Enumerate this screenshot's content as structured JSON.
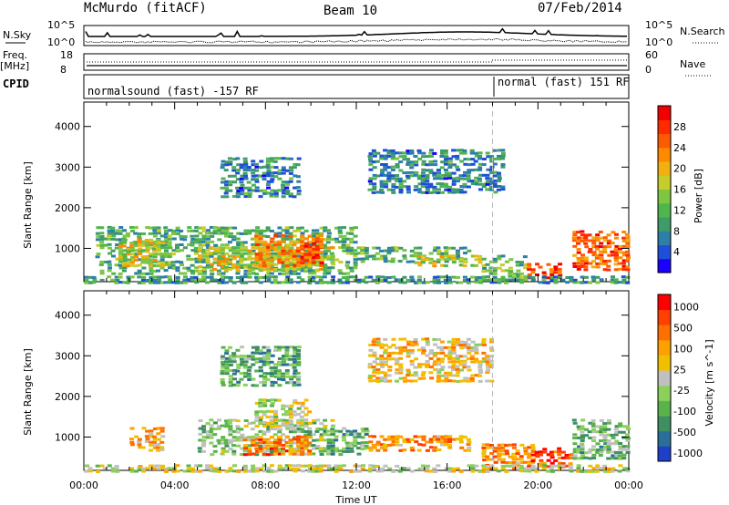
{
  "header": {
    "station": "McMurdo (fitACF)",
    "beam": "Beam 10",
    "date": "07/Feb/2014"
  },
  "aux": {
    "nsky_label": "N.Sky",
    "nsearch_label": "N.Search",
    "freq_label": "Freq.",
    "freq_unit": "[MHz]",
    "nave_label": "Nave",
    "cpid_label": "CPID",
    "noise_ticks_left": [
      "10^5",
      "10^0"
    ],
    "noise_ticks_right": [
      "10^5",
      "10^0"
    ],
    "freq_ticks": [
      "18",
      "8"
    ],
    "nave_ticks": [
      "60",
      "0"
    ],
    "cpid_segments": [
      {
        "text": "normalsound (fast) -157 RF",
        "start_hour": 0
      },
      {
        "text": "normal (fast) 151 RF",
        "start_hour": 18
      }
    ]
  },
  "chart_data": [
    {
      "type": "heatmap",
      "title": "Power",
      "ylabel": "Slant Range [km]",
      "xlabel": "Time UT",
      "xlim": [
        "00:00",
        "24:00"
      ],
      "ylim": [
        180,
        4600
      ],
      "x_ticks": [
        "00:00",
        "04:00",
        "08:00",
        "12:00",
        "16:00",
        "20:00",
        "00:00"
      ],
      "y_ticks": [
        1000,
        2000,
        3000,
        4000
      ],
      "colorbar": {
        "label": "Power [dB]",
        "ticks": [
          4,
          8,
          12,
          16,
          20,
          24,
          28
        ],
        "colors": [
          "#1a00ff",
          "#1e4fd6",
          "#2e7fa8",
          "#3f9b67",
          "#4fb54d",
          "#7ec540",
          "#c6cc2a",
          "#f0b010",
          "#ff8a00",
          "#ff5a00",
          "#ff2a00",
          "#f00000"
        ]
      },
      "blobs": [
        {
          "h0": 0.5,
          "h1": 12.0,
          "r0": 400,
          "r1": 1600,
          "level": 0.35
        },
        {
          "h0": 1.5,
          "h1": 3.5,
          "r0": 600,
          "r1": 1300,
          "level": 0.55
        },
        {
          "h0": 5.0,
          "h1": 11.0,
          "r0": 500,
          "r1": 1100,
          "level": 0.55
        },
        {
          "h0": 7.5,
          "h1": 10.5,
          "r0": 600,
          "r1": 1400,
          "level": 0.7
        },
        {
          "h0": 9.5,
          "h1": 10.5,
          "r0": 600,
          "r1": 1200,
          "level": 0.82
        },
        {
          "h0": 12.0,
          "h1": 17.0,
          "r0": 700,
          "r1": 1100,
          "level": 0.35
        },
        {
          "h0": 14.5,
          "h1": 17.5,
          "r0": 600,
          "r1": 900,
          "level": 0.55
        },
        {
          "h0": 17.5,
          "h1": 19.5,
          "r0": 250,
          "r1": 900,
          "level": 0.4
        },
        {
          "h0": 19.5,
          "h1": 21.0,
          "r0": 300,
          "r1": 700,
          "level": 0.85
        },
        {
          "h0": 21.5,
          "h1": 24.0,
          "r0": 500,
          "r1": 1500,
          "level": 0.8
        },
        {
          "h0": 6.0,
          "h1": 9.5,
          "r0": 2300,
          "r1": 3300,
          "level": 0.25
        },
        {
          "h0": 12.5,
          "h1": 18.5,
          "r0": 2400,
          "r1": 3500,
          "level": 0.25
        },
        {
          "h0": 0.0,
          "h1": 24.0,
          "r0": 180,
          "r1": 380,
          "level": 0.3
        }
      ]
    },
    {
      "type": "heatmap",
      "title": "Velocity",
      "ylabel": "Slant Range [km]",
      "xlabel": "Time UT",
      "xlim": [
        "00:00",
        "24:00"
      ],
      "ylim": [
        180,
        4600
      ],
      "x_ticks": [
        "00:00",
        "04:00",
        "08:00",
        "12:00",
        "16:00",
        "20:00",
        "00:00"
      ],
      "y_ticks": [
        1000,
        2000,
        3000,
        4000
      ],
      "colorbar": {
        "label": "Velocity [m s^-1]",
        "ticks": [
          1000,
          500,
          100,
          25,
          -25,
          -100,
          -500,
          -1000
        ],
        "colors": [
          "#1e3fc8",
          "#2a6f9a",
          "#3f9060",
          "#58b44a",
          "#8ad05a",
          "#c0c0c0",
          "#f0c000",
          "#ffa000",
          "#ff7000",
          "#ff4000",
          "#ff0000"
        ]
      },
      "blobs": [
        {
          "h0": 2.0,
          "h1": 3.5,
          "r0": 700,
          "r1": 1300,
          "level": 0.65
        },
        {
          "h0": 5.0,
          "h1": 11.0,
          "r0": 600,
          "r1": 1500,
          "level": 0.4
        },
        {
          "h0": 7.0,
          "h1": 10.0,
          "r0": 600,
          "r1": 1100,
          "level": 0.75
        },
        {
          "h0": 7.5,
          "h1": 10.0,
          "r0": 1300,
          "r1": 2000,
          "level": 0.5
        },
        {
          "h0": 10.5,
          "h1": 12.5,
          "r0": 600,
          "r1": 1300,
          "level": 0.3
        },
        {
          "h0": 12.5,
          "h1": 17.0,
          "r0": 700,
          "r1": 1100,
          "level": 0.7
        },
        {
          "h0": 17.5,
          "h1": 20.0,
          "r0": 250,
          "r1": 900,
          "level": 0.72
        },
        {
          "h0": 19.5,
          "h1": 21.5,
          "r0": 300,
          "r1": 800,
          "level": 0.85
        },
        {
          "h0": 21.5,
          "h1": 24.0,
          "r0": 500,
          "r1": 1500,
          "level": 0.35
        },
        {
          "h0": 6.0,
          "h1": 9.5,
          "r0": 2300,
          "r1": 3300,
          "level": 0.3
        },
        {
          "h0": 12.5,
          "h1": 18.0,
          "r0": 2400,
          "r1": 3500,
          "level": 0.6
        },
        {
          "h0": 0.0,
          "h1": 24.0,
          "r0": 180,
          "r1": 380,
          "level": 0.5
        }
      ]
    }
  ]
}
